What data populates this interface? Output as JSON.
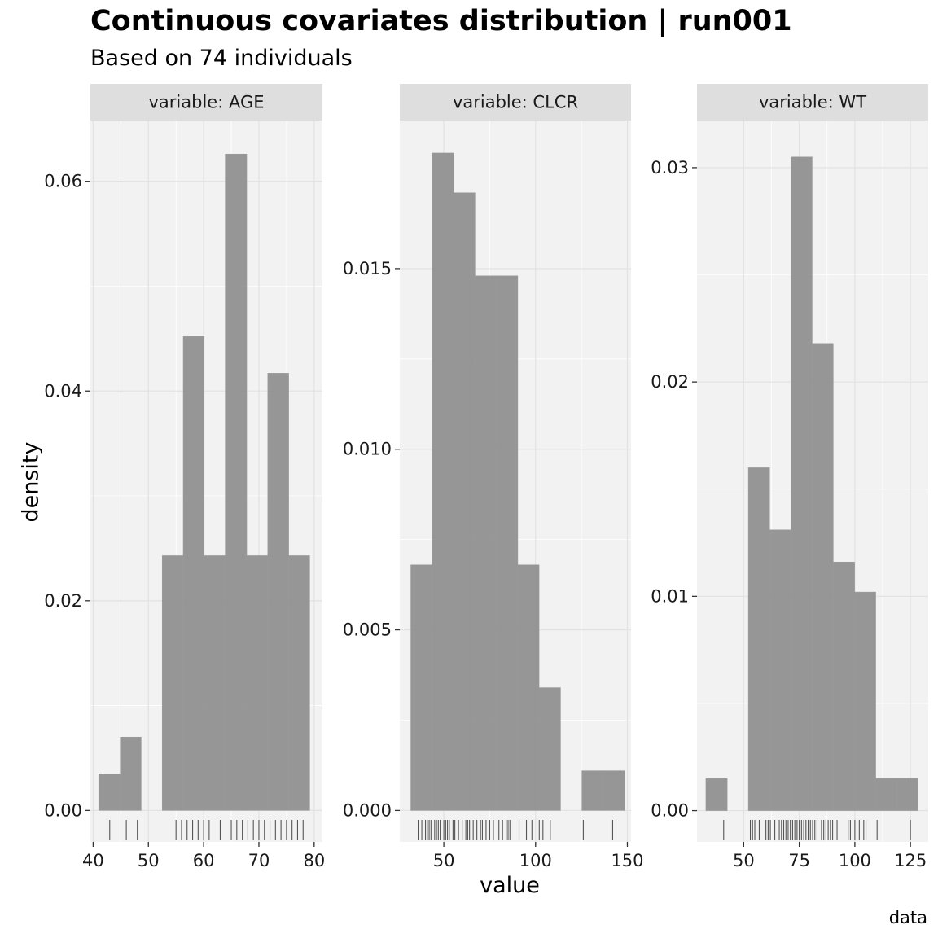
{
  "chart_data": {
    "type": "histogram",
    "title": "Continuous covariates distribution | run001",
    "subtitle": "Based on 74 individuals",
    "xlabel": "value",
    "ylabel": "density",
    "caption": "data",
    "facets": [
      {
        "label": "variable: AGE",
        "xlim": [
          39.5,
          81.5
        ],
        "ylim": [
          -0.003,
          0.0658
        ],
        "x_ticks": [
          40,
          50,
          60,
          70,
          80
        ],
        "y_ticks": [
          0.0,
          0.02,
          0.04,
          0.06
        ],
        "y_tick_labels": [
          "0.00",
          "0.02",
          "0.04",
          "0.06"
        ],
        "bins": [
          {
            "x0": 41.0,
            "x1": 44.9,
            "density": 0.0035
          },
          {
            "x0": 44.9,
            "x1": 48.7,
            "density": 0.007
          },
          {
            "x0": 48.7,
            "x1": 52.5,
            "density": 0.0
          },
          {
            "x0": 52.5,
            "x1": 56.3,
            "density": 0.0243
          },
          {
            "x0": 56.3,
            "x1": 60.1,
            "density": 0.0452
          },
          {
            "x0": 60.1,
            "x1": 63.9,
            "density": 0.0243
          },
          {
            "x0": 63.9,
            "x1": 67.8,
            "density": 0.0626
          },
          {
            "x0": 67.8,
            "x1": 71.6,
            "density": 0.0243
          },
          {
            "x0": 71.6,
            "x1": 75.4,
            "density": 0.0417
          },
          {
            "x0": 75.4,
            "x1": 79.2,
            "density": 0.0243
          }
        ],
        "rug": [
          43,
          46,
          48,
          55,
          56,
          57,
          58,
          59,
          60,
          61,
          63,
          65,
          66,
          67,
          68,
          69,
          70,
          71,
          72,
          73,
          74,
          75,
          76,
          77,
          78
        ]
      },
      {
        "label": "variable: CLCR",
        "xlim": [
          26,
          152
        ],
        "ylim": [
          -0.00087,
          0.0191
        ],
        "x_ticks": [
          50,
          100,
          150
        ],
        "y_ticks": [
          0.0,
          0.005,
          0.01,
          0.015
        ],
        "y_tick_labels": [
          "0.000",
          "0.005",
          "0.010",
          "0.015"
        ],
        "bins": [
          {
            "x0": 32.0,
            "x1": 43.7,
            "density": 0.0068
          },
          {
            "x0": 43.7,
            "x1": 55.3,
            "density": 0.0182
          },
          {
            "x0": 55.3,
            "x1": 67.0,
            "density": 0.0171
          },
          {
            "x0": 67.0,
            "x1": 78.6,
            "density": 0.0148
          },
          {
            "x0": 78.6,
            "x1": 90.3,
            "density": 0.0148
          },
          {
            "x0": 90.3,
            "x1": 101.9,
            "density": 0.0068
          },
          {
            "x0": 101.9,
            "x1": 113.6,
            "density": 0.0034
          },
          {
            "x0": 113.6,
            "x1": 125.2,
            "density": 0.0
          },
          {
            "x0": 125.2,
            "x1": 136.9,
            "density": 0.0011
          },
          {
            "x0": 136.9,
            "x1": 148.5,
            "density": 0.0011
          }
        ],
        "rug": [
          36,
          38,
          40,
          41,
          42,
          43,
          45,
          46,
          47,
          48,
          50,
          51,
          52,
          53,
          55,
          56,
          58,
          60,
          62,
          63,
          64,
          66,
          68,
          70,
          71,
          73,
          75,
          77,
          80,
          82,
          84,
          85,
          86,
          91,
          95,
          98,
          102,
          104,
          108,
          126,
          142
        ]
      },
      {
        "label": "variable: WT",
        "xlim": [
          29,
          133
        ],
        "ylim": [
          -0.00146,
          0.0322
        ],
        "x_ticks": [
          50,
          75,
          100,
          125
        ],
        "y_ticks": [
          0.0,
          0.01,
          0.02,
          0.03
        ],
        "y_tick_labels": [
          "0.00",
          "0.01",
          "0.02",
          "0.03"
        ],
        "bins": [
          {
            "x0": 33.0,
            "x1": 42.6,
            "density": 0.0015
          },
          {
            "x0": 42.6,
            "x1": 52.1,
            "density": 0.0
          },
          {
            "x0": 52.1,
            "x1": 61.7,
            "density": 0.016
          },
          {
            "x0": 61.7,
            "x1": 71.2,
            "density": 0.0131
          },
          {
            "x0": 71.2,
            "x1": 80.8,
            "density": 0.0305
          },
          {
            "x0": 80.8,
            "x1": 90.3,
            "density": 0.0218
          },
          {
            "x0": 90.3,
            "x1": 99.9,
            "density": 0.0116
          },
          {
            "x0": 99.9,
            "x1": 109.4,
            "density": 0.0102
          },
          {
            "x0": 109.4,
            "x1": 119.0,
            "density": 0.0015
          },
          {
            "x0": 119.0,
            "x1": 128.5,
            "density": 0.0015
          }
        ],
        "rug": [
          41,
          53,
          54,
          55,
          57,
          60,
          61,
          62,
          64,
          66,
          67,
          68,
          69,
          70,
          71,
          72,
          73,
          74,
          75,
          76,
          77,
          78,
          79,
          80,
          81,
          82,
          83,
          85,
          86,
          87,
          88,
          89,
          90,
          92,
          97,
          98,
          100,
          102,
          104,
          105,
          110,
          125
        ]
      }
    ]
  }
}
